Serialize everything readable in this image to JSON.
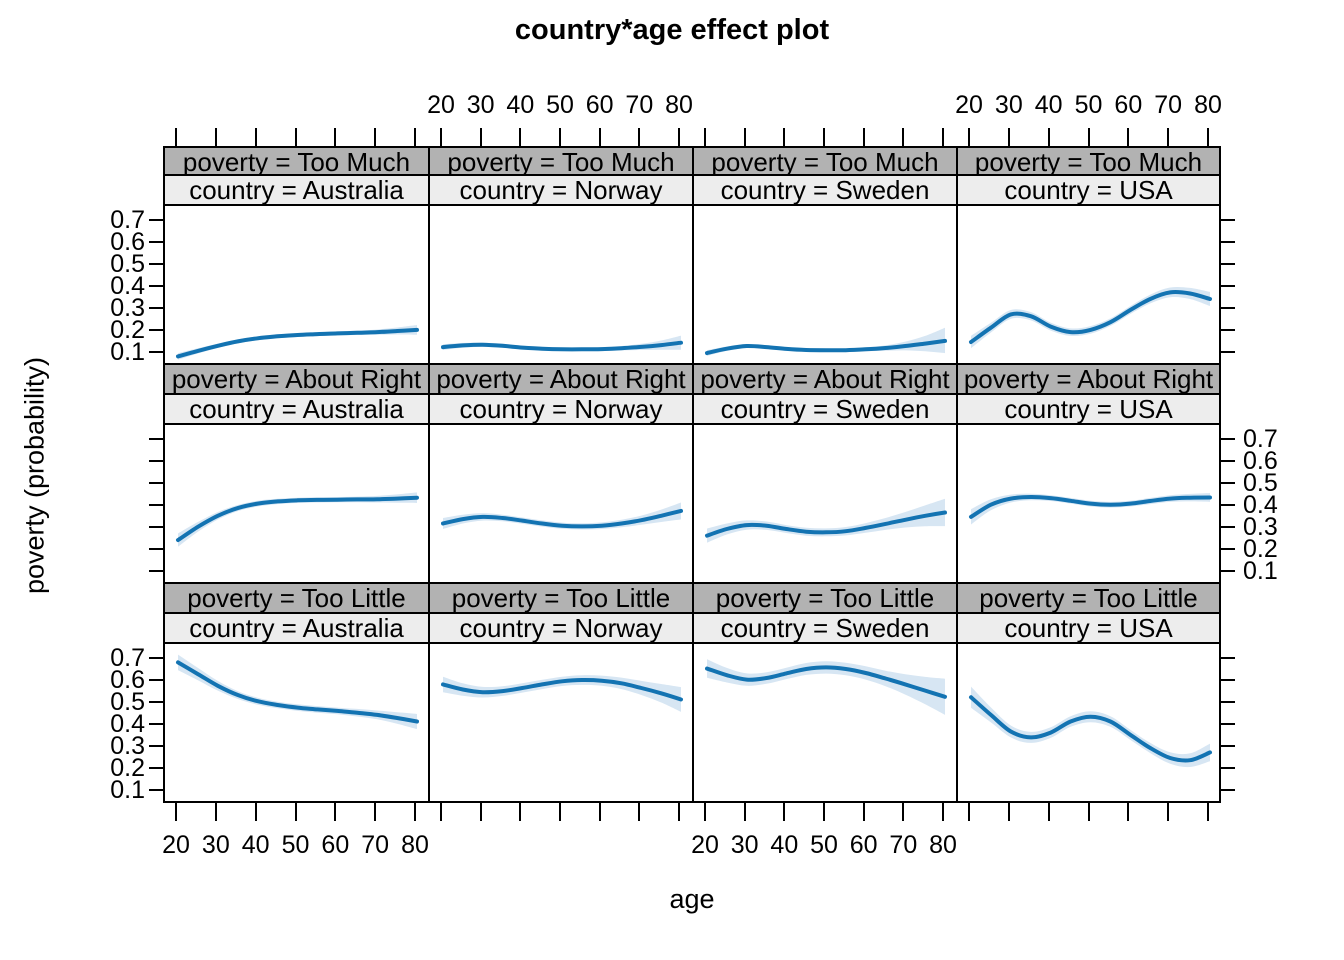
{
  "title": "country*age effect plot",
  "xlabel": "age",
  "ylabel": "poverty (probability)",
  "colors": {
    "line": "#1373b2",
    "band": "#d7e6f3",
    "strip_poverty_bg": "#b2b2b2",
    "strip_country_bg": "#ededed",
    "border": "#000000"
  },
  "chart_data": {
    "type": "line",
    "layout": {
      "rows": 3,
      "cols": 4,
      "grid": false,
      "x_label_rows": "bottom for columns 1 and 3, top for columns 2 and 4",
      "y_label_cols": "left for rows 1 and 3, right for row 2"
    },
    "x_ticks": [
      20,
      30,
      40,
      50,
      60,
      70,
      80
    ],
    "y_ticks": [
      "0.7",
      "0.6",
      "0.5",
      "0.4",
      "0.3",
      "0.2",
      "0.1"
    ],
    "xlim": [
      20,
      80
    ],
    "ylim": [
      0.1,
      0.7
    ],
    "row_labels": [
      "poverty = Too Much",
      "poverty = About Right",
      "poverty = Too Little"
    ],
    "col_labels": [
      "country = Australia",
      "country = Norway",
      "country = Sweden",
      "country = USA"
    ],
    "x": [
      20,
      25,
      30,
      35,
      40,
      45,
      50,
      55,
      60,
      65,
      70,
      75,
      80
    ],
    "panels": [
      {
        "poverty": "Too Much",
        "country": "Australia",
        "fit": [
          0.08,
          0.105,
          0.128,
          0.148,
          0.162,
          0.171,
          0.177,
          0.181,
          0.184,
          0.187,
          0.19,
          0.195,
          0.2
        ],
        "lower": [
          0.065,
          0.093,
          0.118,
          0.139,
          0.153,
          0.162,
          0.168,
          0.172,
          0.175,
          0.177,
          0.178,
          0.179,
          0.178
        ],
        "upper": [
          0.095,
          0.117,
          0.138,
          0.157,
          0.171,
          0.18,
          0.186,
          0.19,
          0.193,
          0.197,
          0.202,
          0.211,
          0.222
        ]
      },
      {
        "poverty": "Too Much",
        "country": "Norway",
        "fit": [
          0.122,
          0.13,
          0.133,
          0.128,
          0.12,
          0.115,
          0.112,
          0.112,
          0.113,
          0.117,
          0.123,
          0.131,
          0.142
        ],
        "lower": [
          0.109,
          0.119,
          0.124,
          0.119,
          0.112,
          0.107,
          0.104,
          0.104,
          0.104,
          0.107,
          0.109,
          0.11,
          0.11
        ],
        "upper": [
          0.135,
          0.141,
          0.142,
          0.137,
          0.128,
          0.123,
          0.12,
          0.12,
          0.122,
          0.127,
          0.137,
          0.152,
          0.174
        ]
      },
      {
        "poverty": "Too Much",
        "country": "Sweden",
        "fit": [
          0.095,
          0.115,
          0.127,
          0.122,
          0.114,
          0.109,
          0.108,
          0.108,
          0.112,
          0.118,
          0.127,
          0.138,
          0.15
        ],
        "lower": [
          0.082,
          0.105,
          0.118,
          0.114,
          0.106,
          0.101,
          0.1,
          0.1,
          0.103,
          0.106,
          0.107,
          0.103,
          0.095
        ],
        "upper": [
          0.108,
          0.125,
          0.136,
          0.13,
          0.122,
          0.117,
          0.116,
          0.116,
          0.121,
          0.13,
          0.147,
          0.173,
          0.21
        ]
      },
      {
        "poverty": "Too Much",
        "country": "USA",
        "fit": [
          0.145,
          0.21,
          0.27,
          0.262,
          0.215,
          0.19,
          0.2,
          0.235,
          0.29,
          0.34,
          0.37,
          0.365,
          0.34
        ],
        "lower": [
          0.117,
          0.188,
          0.25,
          0.243,
          0.197,
          0.173,
          0.183,
          0.218,
          0.272,
          0.32,
          0.348,
          0.34,
          0.308
        ],
        "upper": [
          0.173,
          0.232,
          0.29,
          0.281,
          0.233,
          0.207,
          0.217,
          0.252,
          0.308,
          0.36,
          0.392,
          0.39,
          0.372
        ]
      },
      {
        "poverty": "About Right",
        "country": "Australia",
        "fit": [
          0.24,
          0.3,
          0.35,
          0.385,
          0.405,
          0.415,
          0.42,
          0.422,
          0.423,
          0.424,
          0.425,
          0.428,
          0.432
        ],
        "lower": [
          0.21,
          0.278,
          0.333,
          0.371,
          0.392,
          0.403,
          0.408,
          0.41,
          0.411,
          0.411,
          0.41,
          0.409,
          0.408
        ],
        "upper": [
          0.27,
          0.322,
          0.367,
          0.399,
          0.418,
          0.427,
          0.432,
          0.434,
          0.435,
          0.437,
          0.44,
          0.447,
          0.456
        ]
      },
      {
        "poverty": "About Right",
        "country": "Norway",
        "fit": [
          0.315,
          0.335,
          0.345,
          0.34,
          0.328,
          0.315,
          0.305,
          0.302,
          0.305,
          0.315,
          0.33,
          0.35,
          0.372
        ],
        "lower": [
          0.29,
          0.315,
          0.328,
          0.325,
          0.314,
          0.301,
          0.291,
          0.288,
          0.29,
          0.298,
          0.309,
          0.322,
          0.334
        ],
        "upper": [
          0.34,
          0.355,
          0.362,
          0.355,
          0.342,
          0.329,
          0.319,
          0.316,
          0.32,
          0.332,
          0.351,
          0.378,
          0.41
        ]
      },
      {
        "poverty": "About Right",
        "country": "Sweden",
        "fit": [
          0.26,
          0.29,
          0.308,
          0.305,
          0.29,
          0.278,
          0.275,
          0.28,
          0.295,
          0.313,
          0.332,
          0.35,
          0.365
        ],
        "lower": [
          0.228,
          0.265,
          0.287,
          0.286,
          0.272,
          0.26,
          0.257,
          0.261,
          0.273,
          0.286,
          0.297,
          0.303,
          0.303
        ],
        "upper": [
          0.292,
          0.315,
          0.329,
          0.324,
          0.308,
          0.296,
          0.293,
          0.299,
          0.317,
          0.34,
          0.367,
          0.397,
          0.427
        ]
      },
      {
        "poverty": "About Right",
        "country": "USA",
        "fit": [
          0.345,
          0.4,
          0.428,
          0.435,
          0.43,
          0.418,
          0.405,
          0.4,
          0.405,
          0.417,
          0.428,
          0.432,
          0.433
        ],
        "lower": [
          0.31,
          0.375,
          0.41,
          0.42,
          0.417,
          0.405,
          0.392,
          0.387,
          0.392,
          0.403,
          0.413,
          0.415,
          0.413
        ],
        "upper": [
          0.38,
          0.425,
          0.446,
          0.45,
          0.443,
          0.431,
          0.418,
          0.413,
          0.418,
          0.431,
          0.443,
          0.449,
          0.453
        ]
      },
      {
        "poverty": "Too Little",
        "country": "Australia",
        "fit": [
          0.678,
          0.625,
          0.572,
          0.53,
          0.502,
          0.485,
          0.473,
          0.465,
          0.458,
          0.45,
          0.44,
          0.426,
          0.41
        ],
        "lower": [
          0.643,
          0.597,
          0.55,
          0.512,
          0.486,
          0.47,
          0.458,
          0.45,
          0.443,
          0.433,
          0.42,
          0.4,
          0.376
        ],
        "upper": [
          0.713,
          0.653,
          0.594,
          0.548,
          0.518,
          0.5,
          0.488,
          0.48,
          0.473,
          0.467,
          0.46,
          0.452,
          0.444
        ]
      },
      {
        "poverty": "Too Little",
        "country": "Norway",
        "fit": [
          0.578,
          0.555,
          0.543,
          0.548,
          0.562,
          0.578,
          0.592,
          0.598,
          0.595,
          0.583,
          0.562,
          0.538,
          0.51
        ],
        "lower": [
          0.543,
          0.527,
          0.519,
          0.526,
          0.541,
          0.557,
          0.571,
          0.576,
          0.572,
          0.557,
          0.53,
          0.496,
          0.454
        ],
        "upper": [
          0.613,
          0.583,
          0.567,
          0.57,
          0.583,
          0.599,
          0.613,
          0.62,
          0.618,
          0.609,
          0.594,
          0.58,
          0.566
        ]
      },
      {
        "poverty": "Too Little",
        "country": "Sweden",
        "fit": [
          0.65,
          0.62,
          0.6,
          0.607,
          0.628,
          0.648,
          0.655,
          0.648,
          0.63,
          0.605,
          0.578,
          0.55,
          0.522
        ],
        "lower": [
          0.608,
          0.587,
          0.572,
          0.581,
          0.602,
          0.621,
          0.627,
          0.62,
          0.6,
          0.57,
          0.532,
          0.488,
          0.44
        ],
        "upper": [
          0.692,
          0.653,
          0.628,
          0.633,
          0.654,
          0.675,
          0.683,
          0.676,
          0.66,
          0.64,
          0.624,
          0.612,
          0.604
        ]
      },
      {
        "poverty": "Too Little",
        "country": "USA",
        "fit": [
          0.52,
          0.44,
          0.365,
          0.338,
          0.36,
          0.41,
          0.432,
          0.41,
          0.35,
          0.29,
          0.245,
          0.235,
          0.27
        ],
        "lower": [
          0.472,
          0.406,
          0.338,
          0.313,
          0.336,
          0.386,
          0.407,
          0.386,
          0.327,
          0.267,
          0.219,
          0.204,
          0.23
        ],
        "upper": [
          0.568,
          0.474,
          0.392,
          0.363,
          0.384,
          0.434,
          0.457,
          0.434,
          0.373,
          0.313,
          0.271,
          0.266,
          0.31
        ]
      }
    ]
  }
}
